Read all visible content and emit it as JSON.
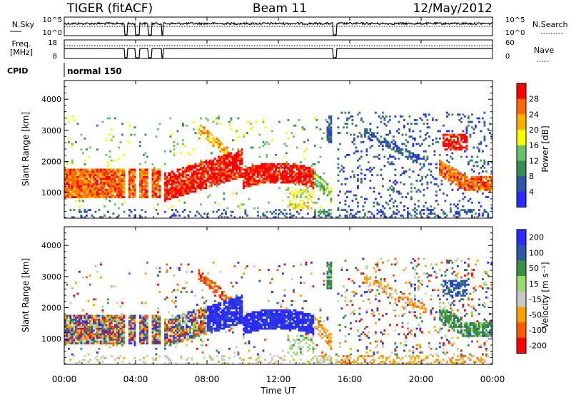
{
  "header": {
    "station": "TIGER (fitACF)",
    "beam": "Beam 11",
    "date": "12/May/2012"
  },
  "side_labels": {
    "nsky": "N.Sky",
    "nsky_top": "10^5",
    "nsky_bottom": "10^0",
    "nsearch": "N.Search",
    "nsearch_top": "10^5",
    "nsearch_bottom": "10^0",
    "freq_label": "Freq.",
    "freq_unit": "[MHz]",
    "freq_top": "18",
    "freq_bottom": "8",
    "nave": "Nave",
    "nave_top": "60",
    "nave_bottom": "0",
    "cpid": "CPID",
    "cpid_value": "normal 150"
  },
  "colors": {
    "power_scale": [
      "#2b2bff",
      "#2c57a8",
      "#3d8a55",
      "#69c36a",
      "#ffff00",
      "#ffb000",
      "#ff6a00",
      "#ff0000"
    ],
    "velocity_scale": [
      "#ff0000",
      "#ff5a00",
      "#ffa200",
      "#c9c9c9",
      "#9bd96a",
      "#3a8f45",
      "#2c57a8",
      "#2b2bff"
    ]
  },
  "chart_data": [
    {
      "type": "line",
      "name": "nsky-nsearch",
      "x_range": [
        0,
        24
      ],
      "y_scale": "log",
      "y_range_label": [
        "10^0",
        "10^5"
      ],
      "gaps_hours": [
        [
          3.4,
          3.55
        ],
        [
          4.0,
          4.2
        ],
        [
          4.7,
          4.9
        ],
        [
          5.45,
          5.55
        ],
        [
          15.05,
          15.25
        ]
      ],
      "series": []
    },
    {
      "type": "line",
      "name": "freq-nave",
      "x_range": [
        0,
        24
      ],
      "freq_ylim": [
        8,
        18
      ],
      "nave_ylim": [
        0,
        60
      ],
      "series": []
    },
    {
      "type": "heatmap",
      "title": "",
      "xlabel": "",
      "ylabel": "Slant Range [km]",
      "x_range": [
        0,
        24
      ],
      "ylim": [
        180,
        4600
      ],
      "y_ticks": [
        1000,
        2000,
        3000,
        4000
      ],
      "colorbar_label": "Power [dB]",
      "colorbar_ticks": [
        "4",
        "8",
        "12",
        "16",
        "20",
        "24",
        "28"
      ],
      "colorbar_range": [
        0,
        32
      ]
    },
    {
      "type": "heatmap",
      "title": "",
      "xlabel": "Time UT",
      "ylabel": "Slant Range [km]",
      "x_range": [
        0,
        24
      ],
      "ylim": [
        180,
        4600
      ],
      "y_ticks": [
        1000,
        2000,
        3000,
        4000
      ],
      "x_ticks": [
        "00:00",
        "04:00",
        "08:00",
        "12:00",
        "16:00",
        "20:00",
        "00:00"
      ],
      "colorbar_label": "Velocity [m s⁻¹]",
      "colorbar_ticks": [
        "200",
        "100",
        "50",
        "15",
        "-15",
        "-50",
        "-100",
        "-200"
      ],
      "colorbar_range": [
        -250,
        250
      ]
    }
  ]
}
